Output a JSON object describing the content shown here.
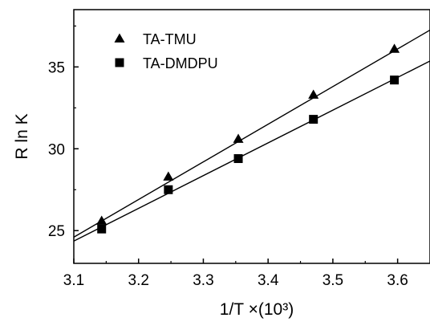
{
  "chart_data": {
    "type": "scatter",
    "xlabel": "1/T ×(10³)",
    "ylabel": "R ln K",
    "xlim": [
      3.1,
      3.65
    ],
    "ylim": [
      23,
      38.5
    ],
    "xticks": [
      "3.1",
      "3.2",
      "3.3",
      "3.4",
      "3.5",
      "3.6"
    ],
    "yticks": [
      "25",
      "30",
      "35"
    ],
    "legend_position": "top-left",
    "grid": false,
    "series": [
      {
        "name": "TA-TMU",
        "marker": "triangle",
        "color": "#000000",
        "x": [
          3.143,
          3.246,
          3.354,
          3.47,
          3.595
        ],
        "y": [
          25.6,
          28.3,
          30.6,
          33.3,
          36.1
        ],
        "fit": {
          "slope": 23.0,
          "intercept": -46.7
        }
      },
      {
        "name": "TA-DMDPU",
        "marker": "square",
        "color": "#000000",
        "x": [
          3.143,
          3.246,
          3.354,
          3.47,
          3.595
        ],
        "y": [
          25.1,
          27.5,
          29.4,
          31.8,
          34.2
        ],
        "fit": {
          "slope": 20.0,
          "intercept": -37.64
        }
      }
    ]
  }
}
